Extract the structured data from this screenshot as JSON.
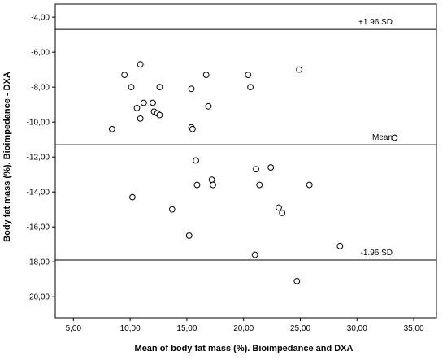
{
  "chart_data": {
    "type": "scatter",
    "title": "",
    "xlabel": "Mean of body fat mass (%). Bioimpedance and DXA",
    "ylabel": "Body fat mass (%). Bioimpedance - DXA",
    "xlim": [
      3.4,
      37.0
    ],
    "ylim": [
      -21.2,
      -3.25
    ],
    "x_ticks": [
      5,
      10,
      15,
      20,
      25,
      30,
      35
    ],
    "x_tick_labels": [
      "5,00",
      "10,00",
      "15,00",
      "20,00",
      "25,00",
      "30,00",
      "35,00"
    ],
    "y_ticks": [
      -4,
      -6,
      -8,
      -10,
      -12,
      -14,
      -16,
      -18,
      -20
    ],
    "y_tick_labels": [
      "-4,00",
      "-6,00",
      "-8,00",
      "-10,00",
      "-12,00",
      "-14,00",
      "-16,00",
      "-18,00",
      "-20,00"
    ],
    "grid": false,
    "reference_lines": [
      {
        "label": "+1.96 SD",
        "y": -4.7
      },
      {
        "label": "Mean",
        "y": -11.3
      },
      {
        "label": "-1.96 SD",
        "y": -17.9
      }
    ],
    "points": [
      {
        "x": 8.4,
        "y": -10.4
      },
      {
        "x": 9.5,
        "y": -7.3
      },
      {
        "x": 10.1,
        "y": -8.0
      },
      {
        "x": 10.2,
        "y": -14.3
      },
      {
        "x": 10.6,
        "y": -9.2
      },
      {
        "x": 10.9,
        "y": -6.7
      },
      {
        "x": 10.9,
        "y": -9.8
      },
      {
        "x": 11.2,
        "y": -8.9
      },
      {
        "x": 12.0,
        "y": -8.9
      },
      {
        "x": 12.1,
        "y": -9.4
      },
      {
        "x": 12.4,
        "y": -9.5
      },
      {
        "x": 12.6,
        "y": -9.6
      },
      {
        "x": 12.6,
        "y": -8.0
      },
      {
        "x": 13.7,
        "y": -15.0
      },
      {
        "x": 15.2,
        "y": -16.5
      },
      {
        "x": 15.4,
        "y": -8.1
      },
      {
        "x": 15.4,
        "y": -10.3
      },
      {
        "x": 15.5,
        "y": -10.4
      },
      {
        "x": 15.8,
        "y": -12.2
      },
      {
        "x": 15.9,
        "y": -13.6
      },
      {
        "x": 16.7,
        "y": -7.3
      },
      {
        "x": 16.9,
        "y": -9.1
      },
      {
        "x": 17.2,
        "y": -13.3
      },
      {
        "x": 17.3,
        "y": -13.6
      },
      {
        "x": 20.4,
        "y": -7.3
      },
      {
        "x": 20.6,
        "y": -8.0
      },
      {
        "x": 21.0,
        "y": -17.6
      },
      {
        "x": 21.1,
        "y": -12.7
      },
      {
        "x": 21.4,
        "y": -13.6
      },
      {
        "x": 22.4,
        "y": -12.6
      },
      {
        "x": 23.1,
        "y": -14.9
      },
      {
        "x": 23.4,
        "y": -15.2
      },
      {
        "x": 24.7,
        "y": -19.1
      },
      {
        "x": 24.9,
        "y": -7.0
      },
      {
        "x": 25.8,
        "y": -13.6
      },
      {
        "x": 28.5,
        "y": -17.1
      },
      {
        "x": 33.3,
        "y": -10.9
      }
    ]
  },
  "colors": {
    "background": "#ffffff",
    "frame": "#000000",
    "marker_stroke": "#000000",
    "marker_fill": "#ffffff"
  }
}
